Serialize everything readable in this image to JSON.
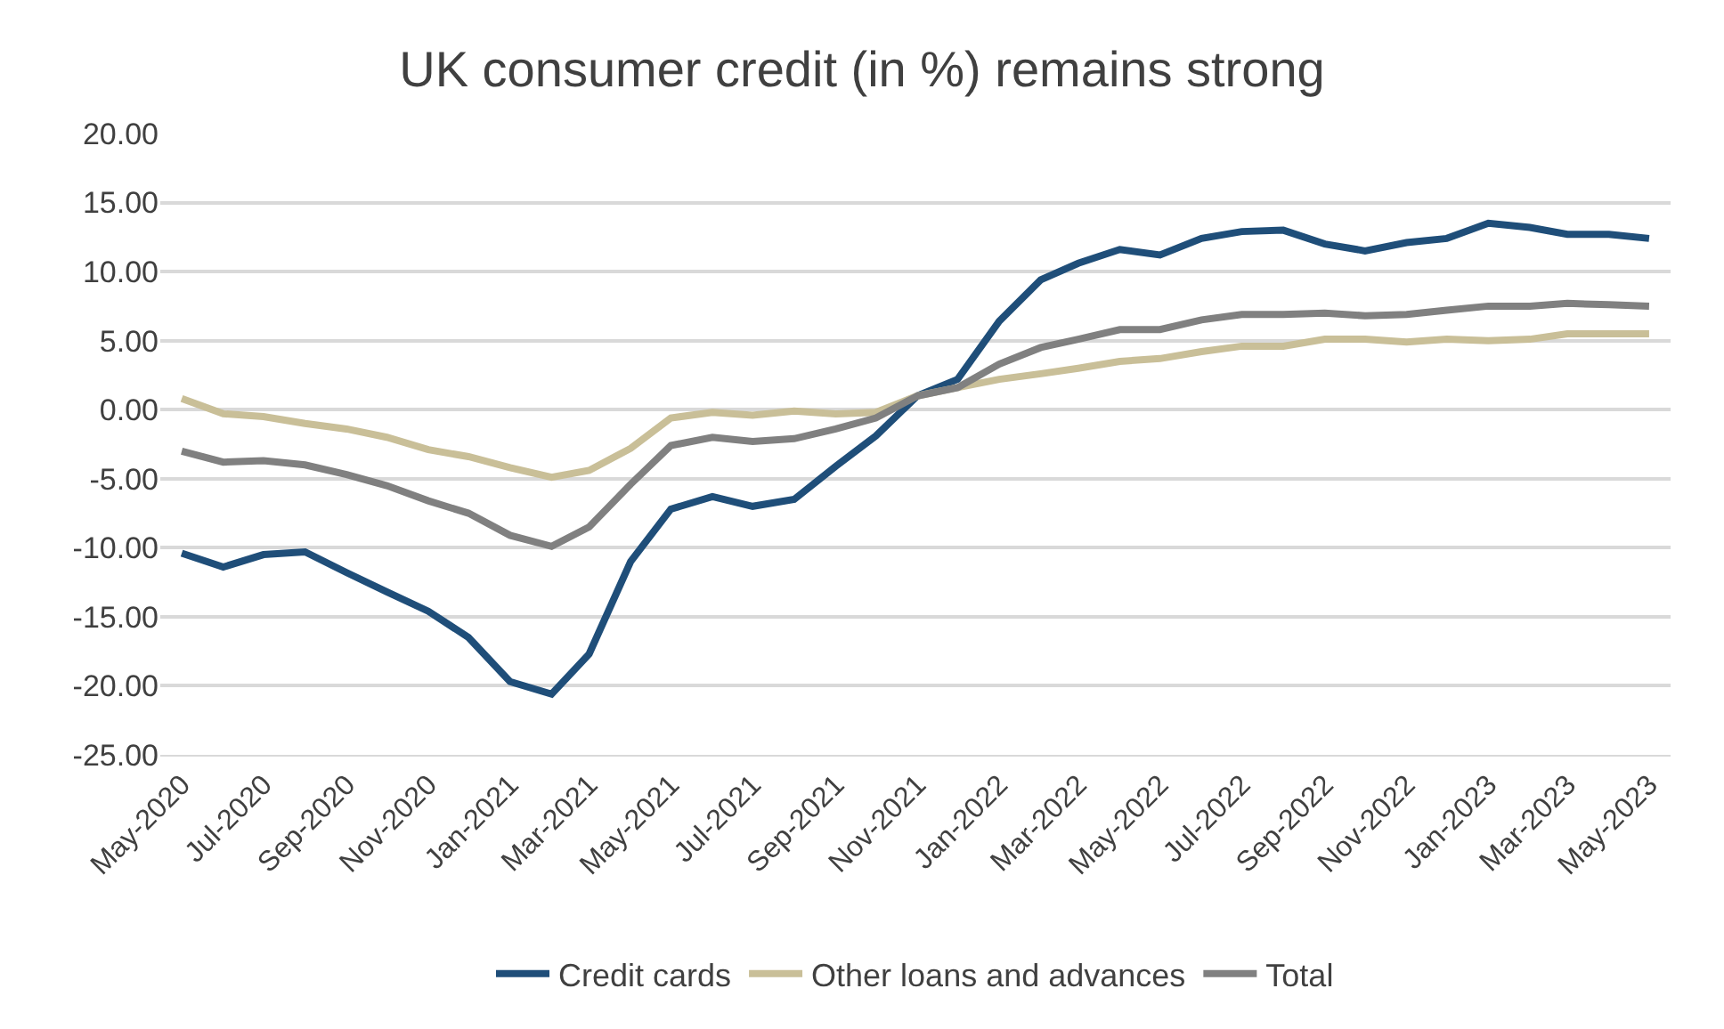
{
  "chart_data": {
    "type": "line",
    "title": "UK consumer credit (in %) remains strong",
    "x": [
      "2020-05",
      "2020-06",
      "2020-07",
      "2020-08",
      "2020-09",
      "2020-10",
      "2020-11",
      "2020-12",
      "2021-01",
      "2021-02",
      "2021-03",
      "2021-04",
      "2021-05",
      "2021-06",
      "2021-07",
      "2021-08",
      "2021-09",
      "2021-10",
      "2021-11",
      "2021-12",
      "2022-01",
      "2022-02",
      "2022-03",
      "2022-04",
      "2022-05",
      "2022-06",
      "2022-07",
      "2022-08",
      "2022-09",
      "2022-10",
      "2022-11",
      "2022-12",
      "2023-01",
      "2023-02",
      "2023-03",
      "2023-04",
      "2023-05"
    ],
    "series": [
      {
        "name": "Credit cards",
        "color": "#1f4e79",
        "values": [
          -10.4,
          -11.4,
          -10.5,
          -10.3,
          -11.8,
          -13.2,
          -14.6,
          -16.5,
          -19.7,
          -20.6,
          -17.7,
          -11.0,
          -7.2,
          -6.3,
          -7.0,
          -6.5,
          -4.1,
          -1.9,
          1.0,
          2.2,
          6.4,
          9.4,
          10.6,
          11.6,
          11.2,
          12.4,
          12.9,
          13.0,
          12.0,
          11.5,
          12.1,
          12.4,
          13.5,
          13.2,
          12.7,
          12.7,
          12.4
        ]
      },
      {
        "name": "Other loans and advances",
        "color": "#c9bf98",
        "values": [
          0.8,
          -0.3,
          -0.5,
          -1.0,
          -1.4,
          -2.0,
          -2.9,
          -3.4,
          -4.2,
          -4.9,
          -4.4,
          -2.8,
          -0.6,
          -0.2,
          -0.4,
          -0.1,
          -0.3,
          -0.2,
          1.0,
          1.6,
          2.2,
          2.6,
          3.0,
          3.5,
          3.7,
          4.2,
          4.6,
          4.6,
          5.1,
          5.1,
          4.9,
          5.1,
          5.0,
          5.1,
          5.5,
          5.5,
          5.5
        ]
      },
      {
        "name": "Total",
        "color": "#808080",
        "values": [
          -3.0,
          -3.8,
          -3.7,
          -4.0,
          -4.7,
          -5.5,
          -6.6,
          -7.5,
          -9.1,
          -9.9,
          -8.5,
          -5.4,
          -2.6,
          -2.0,
          -2.3,
          -2.1,
          -1.4,
          -0.6,
          1.0,
          1.6,
          3.3,
          4.5,
          5.1,
          5.8,
          5.8,
          6.5,
          6.9,
          6.9,
          7.0,
          6.8,
          6.9,
          7.2,
          7.5,
          7.5,
          7.7,
          7.6,
          7.5
        ]
      }
    ],
    "xlim": [
      "2020-04-15",
      "2023-05-17"
    ],
    "xticks": [
      {
        "value": "2020-05",
        "label": "May-2020"
      },
      {
        "value": "2020-07",
        "label": "Jul-2020"
      },
      {
        "value": "2020-09",
        "label": "Sep-2020"
      },
      {
        "value": "2020-11",
        "label": "Nov-2020"
      },
      {
        "value": "2021-01",
        "label": "Jan-2021"
      },
      {
        "value": "2021-03",
        "label": "Mar-2021"
      },
      {
        "value": "2021-05",
        "label": "May-2021"
      },
      {
        "value": "2021-07",
        "label": "Jul-2021"
      },
      {
        "value": "2021-09",
        "label": "Sep-2021"
      },
      {
        "value": "2021-11",
        "label": "Nov-2021"
      },
      {
        "value": "2022-01",
        "label": "Jan-2022"
      },
      {
        "value": "2022-03",
        "label": "Mar-2022"
      },
      {
        "value": "2022-05",
        "label": "May-2022"
      },
      {
        "value": "2022-07",
        "label": "Jul-2022"
      },
      {
        "value": "2022-09",
        "label": "Sep-2022"
      },
      {
        "value": "2022-11",
        "label": "Nov-2022"
      },
      {
        "value": "2023-01",
        "label": "Jan-2023"
      },
      {
        "value": "2023-03",
        "label": "Mar-2023"
      },
      {
        "value": "2023-05",
        "label": "May-2023"
      }
    ],
    "ylim": [
      -25,
      20
    ],
    "yticks": [
      {
        "value": -25,
        "label": "-25.00"
      },
      {
        "value": -20,
        "label": "-20.00"
      },
      {
        "value": -15,
        "label": "-15.00"
      },
      {
        "value": -10,
        "label": "-10.00"
      },
      {
        "value": -5,
        "label": "-5.00"
      },
      {
        "value": 0,
        "label": "0.00"
      },
      {
        "value": 5,
        "label": "5.00"
      },
      {
        "value": 10,
        "label": "10.00"
      },
      {
        "value": 15,
        "label": "15.00"
      },
      {
        "value": 20,
        "label": "20.00"
      }
    ],
    "grid": "y",
    "legend": "bottom",
    "marker": "none",
    "line_style": "solid"
  }
}
